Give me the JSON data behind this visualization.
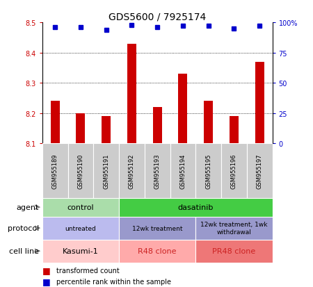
{
  "title": "GDS5600 / 7925174",
  "samples": [
    "GSM955189",
    "GSM955190",
    "GSM955191",
    "GSM955192",
    "GSM955193",
    "GSM955194",
    "GSM955195",
    "GSM955196",
    "GSM955197"
  ],
  "transformed_count": [
    8.24,
    8.2,
    8.19,
    8.43,
    8.22,
    8.33,
    8.24,
    8.19,
    8.37
  ],
  "percentile_rank": [
    96,
    96,
    94,
    98,
    96,
    97,
    97,
    95,
    97
  ],
  "ylim_left": [
    8.1,
    8.5
  ],
  "ylim_right": [
    0,
    100
  ],
  "yticks_left": [
    8.1,
    8.2,
    8.3,
    8.4,
    8.5
  ],
  "yticks_right": [
    0,
    25,
    50,
    75,
    100
  ],
  "bar_color": "#cc0000",
  "dot_color": "#0000cc",
  "bar_width": 0.35,
  "agent_labels": [
    {
      "text": "control",
      "span": [
        0,
        3
      ],
      "color": "#aaddaa"
    },
    {
      "text": "dasatinib",
      "span": [
        3,
        9
      ],
      "color": "#44cc44"
    }
  ],
  "protocol_labels": [
    {
      "text": "untreated",
      "span": [
        0,
        3
      ],
      "color": "#bbbbee"
    },
    {
      "text": "12wk treatment",
      "span": [
        3,
        6
      ],
      "color": "#9999cc"
    },
    {
      "text": "12wk treatment, 1wk\nwithdrawal",
      "span": [
        6,
        9
      ],
      "color": "#9999cc"
    }
  ],
  "cellline_labels": [
    {
      "text": "Kasumi-1",
      "span": [
        0,
        3
      ],
      "color": "#ffcccc"
    },
    {
      "text": "R48 clone",
      "span": [
        3,
        6
      ],
      "color": "#ffaaaa"
    },
    {
      "text": "PR48 clone",
      "span": [
        6,
        9
      ],
      "color": "#ee7777"
    }
  ],
  "cellline_text_colors": [
    "#000000",
    "#cc2222",
    "#cc2222"
  ],
  "legend_items": [
    {
      "color": "#cc0000",
      "label": "transformed count"
    },
    {
      "color": "#0000cc",
      "label": "percentile rank within the sample"
    }
  ],
  "left_axis_color": "#cc0000",
  "right_axis_color": "#0000cc",
  "bg_color": "#ffffff",
  "sample_bg_color": "#cccccc"
}
